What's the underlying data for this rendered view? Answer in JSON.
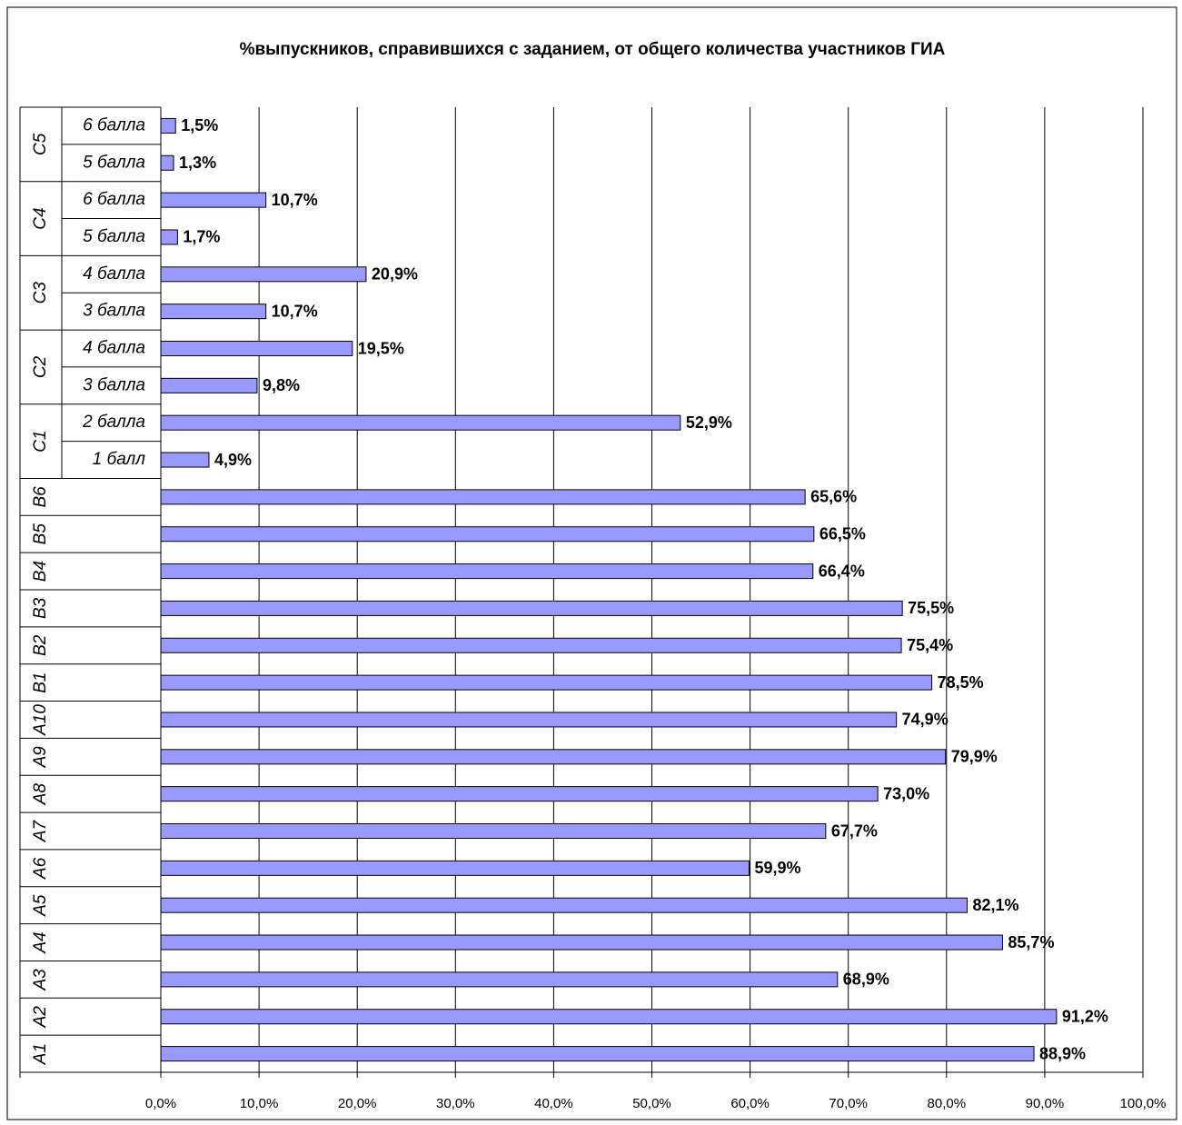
{
  "chart_data": {
    "type": "bar",
    "orientation": "horizontal",
    "title": "%выпускников, справившихся с заданием, от общего количества участников ГИА",
    "groups": [
      "C5",
      "C5",
      "C4",
      "C4",
      "C3",
      "C3",
      "C2",
      "C2",
      "C1",
      "C1",
      "B6",
      "B5",
      "B4",
      "B3",
      "B2",
      "B1",
      "A10",
      "A9",
      "A8",
      "A7",
      "A6",
      "A5",
      "A4",
      "A3",
      "A2",
      "A1"
    ],
    "categories": [
      "6 балла",
      "5 балла",
      "6 балла",
      "5 балла",
      "4 балла",
      "3 балла",
      "4 балла",
      "3 балла",
      "2 балла",
      "1 балл",
      null,
      null,
      null,
      null,
      null,
      null,
      null,
      null,
      null,
      null,
      null,
      null,
      null,
      null,
      null,
      null
    ],
    "values": [
      1.5,
      1.3,
      10.7,
      1.7,
      20.9,
      10.7,
      19.5,
      9.8,
      52.9,
      4.9,
      65.6,
      66.5,
      66.4,
      75.5,
      75.4,
      78.5,
      74.9,
      79.9,
      73.0,
      67.7,
      59.9,
      82.1,
      85.7,
      68.9,
      91.2,
      88.9
    ],
    "value_labels": [
      "1,5%",
      "1,3%",
      "10,7%",
      "1,7%",
      "20,9%",
      "10,7%",
      "19,5%",
      "9,8%",
      "52,9%",
      "4,9%",
      "65,6%",
      "66,5%",
      "66,4%",
      "75,5%",
      "75,4%",
      "78,5%",
      "74,9%",
      "79,9%",
      "73,0%",
      "67,7%",
      "59,9%",
      "82,1%",
      "85,7%",
      "68,9%",
      "91,2%",
      "88,9%"
    ],
    "color": "#9999ff",
    "xlim": [
      0,
      100
    ],
    "xticks": [
      {
        "value": 0,
        "label": "0,0%"
      },
      {
        "value": 10,
        "label": "10,0%"
      },
      {
        "value": 20,
        "label": "20,0%"
      },
      {
        "value": 30,
        "label": "30,0%"
      },
      {
        "value": 40,
        "label": "40,0%"
      },
      {
        "value": 50,
        "label": "50,0%"
      },
      {
        "value": 60,
        "label": "60,0%"
      },
      {
        "value": 70,
        "label": "70,0%"
      },
      {
        "value": 80,
        "label": "80,0%"
      },
      {
        "value": 90,
        "label": "90,0%"
      },
      {
        "value": 100,
        "label": "100,0%"
      }
    ],
    "grid": true
  }
}
